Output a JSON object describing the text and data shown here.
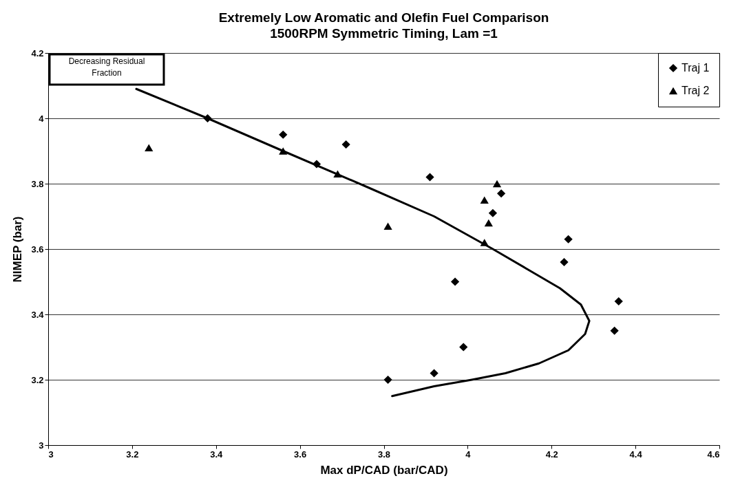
{
  "chart_data": {
    "type": "scatter",
    "title": "Extremely Low Aromatic and Olefin Fuel Comparison",
    "subtitle": "1500RPM Symmetric Timing, Lam =1",
    "xlabel": "Max dP/CAD (bar/CAD)",
    "ylabel": "NIMEP (bar)",
    "xlim": [
      3,
      4.6
    ],
    "xticks": [
      3,
      3.2,
      3.4,
      3.6,
      3.8,
      4,
      4.2,
      4.4,
      4.6
    ],
    "ylim": [
      3,
      4.2
    ],
    "yticks": [
      3,
      3.2,
      3.4,
      3.6,
      3.8,
      4,
      4.2
    ],
    "grid": "y",
    "legend": "top right",
    "annotations": [
      "Decreasing Residual Fraction"
    ],
    "series": [
      {
        "name": "Traj 1",
        "marker": "diamond",
        "color": "#000000",
        "x": [
          3.38,
          3.56,
          3.64,
          3.71,
          3.91,
          4.08,
          4.06,
          4.24,
          4.23,
          3.97,
          4.36,
          4.35,
          3.99,
          3.92,
          3.81
        ],
        "values": [
          4.0,
          3.95,
          3.86,
          3.92,
          3.82,
          3.77,
          3.71,
          3.63,
          3.56,
          3.5,
          3.44,
          3.35,
          3.3,
          3.22,
          3.2
        ]
      },
      {
        "name": "Traj 2",
        "marker": "triangle",
        "color": "#000000",
        "x": [
          3.24,
          3.56,
          3.69,
          4.07,
          4.04,
          4.05,
          3.81,
          4.04
        ],
        "values": [
          3.91,
          3.9,
          3.83,
          3.8,
          3.75,
          3.68,
          3.67,
          3.62
        ]
      },
      {
        "type": "line",
        "marker": "none",
        "color": "#000000",
        "x": [
          3.21,
          3.38,
          3.56,
          3.76,
          3.92,
          4.06,
          4.14,
          4.22,
          4.27,
          4.29,
          4.28,
          4.24,
          4.17,
          4.09,
          4.01,
          3.92,
          3.82
        ],
        "values": [
          4.09,
          4.0,
          3.9,
          3.79,
          3.7,
          3.6,
          3.54,
          3.48,
          3.43,
          3.38,
          3.34,
          3.29,
          3.25,
          3.22,
          3.2,
          3.18,
          3.15
        ]
      }
    ]
  }
}
